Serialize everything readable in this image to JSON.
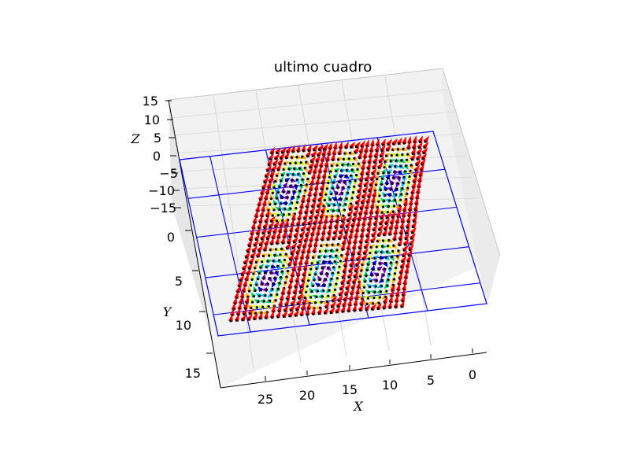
{
  "chart_data": {
    "type": "3d-quiver",
    "title": "ultimo cuadro",
    "xlabel": "X",
    "ylabel": "Y",
    "zlabel": "Z",
    "x_ticks": [
      "25",
      "20",
      "15",
      "10",
      "5",
      "0"
    ],
    "y_ticks": [
      "0",
      "5",
      "10",
      "15"
    ],
    "z_ticks": [
      "15",
      "10",
      "5",
      "0",
      "−5",
      "−10",
      "−15"
    ],
    "xlim": [
      0,
      30
    ],
    "ylim": [
      -3,
      17
    ],
    "zlim": [
      -15,
      15
    ],
    "grid": true,
    "lattice": {
      "nx": 30,
      "ny": 30,
      "spacing": 1
    },
    "domain_centers": [
      [
        4,
        3
      ],
      [
        12,
        3
      ],
      [
        20,
        3
      ],
      [
        4,
        10
      ],
      [
        12,
        10
      ],
      [
        20,
        10
      ]
    ],
    "colormap": [
      "#ff0000",
      "#ffaa00",
      "#ccff00",
      "#00cc66",
      "#00bbee",
      "#0000ff",
      "#7a00cc"
    ],
    "colors": {
      "accent": "#0000ff",
      "pane": "#f2f2f2",
      "gridline": "#d8d8d8"
    }
  }
}
